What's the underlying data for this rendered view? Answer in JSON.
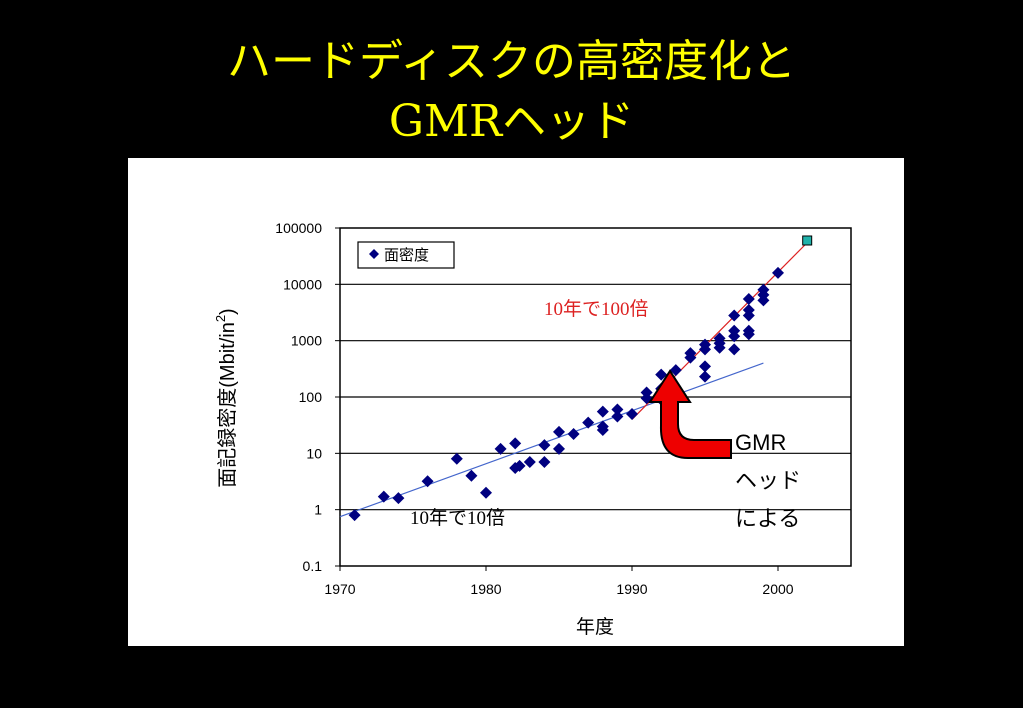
{
  "slide": {
    "title_line1": "ハードディスクの高密度化と",
    "title_line2": "GMRヘッド"
  },
  "colors": {
    "background": "#000000",
    "title": "#ffff00",
    "points": "#000080",
    "trend_slow": "#4466cc",
    "trend_fast": "#dd2222",
    "arrow": "#ee0000",
    "projection_marker": "#20b2aa"
  },
  "chart_data": {
    "type": "scatter",
    "xlabel": "年度",
    "ylabel": "面記録密度(Mbit/in²)",
    "ylabel_main": "面記録密度(Mbit/in",
    "ylabel_sup": "2",
    "ylabel_close": ")",
    "xlim": [
      1970,
      2005
    ],
    "ylim": [
      0.1,
      100000
    ],
    "yscale": "log",
    "grid": "horizontal",
    "legend": {
      "label": "面密度",
      "position": "top-left"
    },
    "x_ticks": [
      "1970",
      "1980",
      "1990",
      "2000"
    ],
    "y_ticks": [
      "0.1",
      "1",
      "10",
      "100",
      "1000",
      "10000",
      "100000"
    ],
    "series": [
      {
        "name": "面密度",
        "points": [
          [
            1971,
            0.8
          ],
          [
            1973,
            1.7
          ],
          [
            1974,
            1.6
          ],
          [
            1976,
            3.2
          ],
          [
            1978,
            8
          ],
          [
            1979,
            4
          ],
          [
            1980,
            2
          ],
          [
            1981,
            12
          ],
          [
            1982,
            15
          ],
          [
            1982,
            5.5
          ],
          [
            1982.3,
            6
          ],
          [
            1983,
            7
          ],
          [
            1984,
            7
          ],
          [
            1984,
            14
          ],
          [
            1985,
            24
          ],
          [
            1985,
            12
          ],
          [
            1986,
            22
          ],
          [
            1987,
            35
          ],
          [
            1988,
            55
          ],
          [
            1988,
            30
          ],
          [
            1988,
            26
          ],
          [
            1989,
            60
          ],
          [
            1989,
            45
          ],
          [
            1990,
            50
          ],
          [
            1991,
            120
          ],
          [
            1991,
            95
          ],
          [
            1992,
            140
          ],
          [
            1992,
            250
          ],
          [
            1992,
            90
          ],
          [
            1993,
            300
          ],
          [
            1994,
            500
          ],
          [
            1994,
            600
          ],
          [
            1995,
            850
          ],
          [
            1995,
            700
          ],
          [
            1995,
            350
          ],
          [
            1995,
            230
          ],
          [
            1996,
            1100
          ],
          [
            1996,
            900
          ],
          [
            1996,
            750
          ],
          [
            1997,
            2800
          ],
          [
            1997,
            1500
          ],
          [
            1997,
            1200
          ],
          [
            1997,
            700
          ],
          [
            1998,
            5500
          ],
          [
            1998,
            3500
          ],
          [
            1998,
            2800
          ],
          [
            1998,
            1500
          ],
          [
            1998,
            1300
          ],
          [
            1999,
            8000
          ],
          [
            1999,
            6500
          ],
          [
            1999,
            5200
          ],
          [
            2000,
            16000
          ]
        ]
      }
    ],
    "projection": {
      "x": 2002,
      "y": 60000
    },
    "trend_slow": {
      "from": [
        1970,
        0.75
      ],
      "to": [
        1999,
        400
      ],
      "label": "10年で10倍"
    },
    "trend_fast": {
      "from": [
        1990,
        40
      ],
      "to": [
        2002,
        55000
      ],
      "label": "10年で100倍"
    },
    "annotation": {
      "lines": [
        "GMR",
        "ヘッド",
        "による"
      ]
    }
  }
}
